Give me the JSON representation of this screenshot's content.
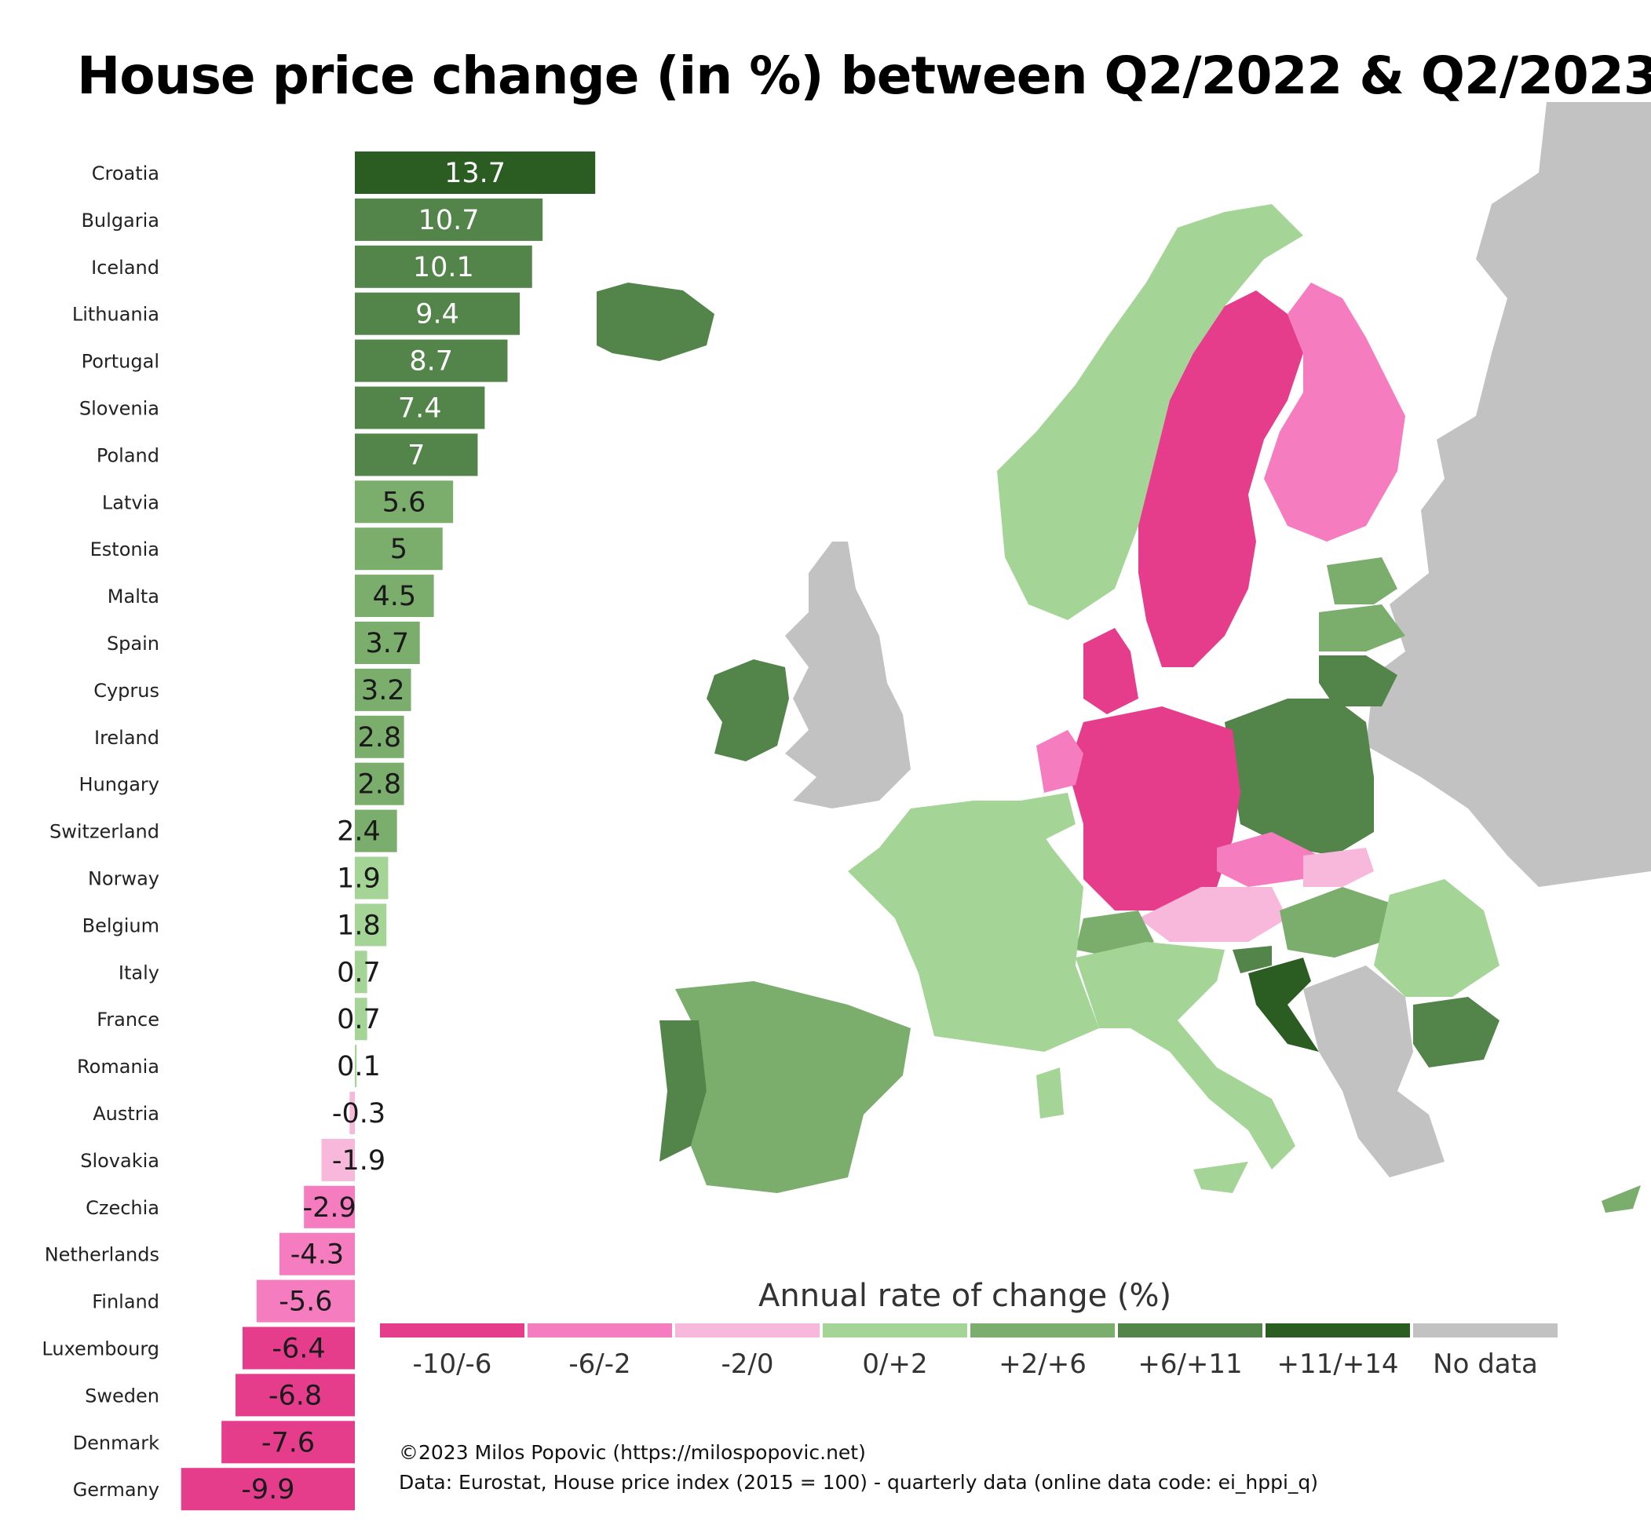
{
  "title": "House price change (in %) between Q2/2022 & Q2/2023",
  "chart_data": {
    "type": "bar",
    "orientation": "horizontal",
    "title": "House price change (in %) between Q2/2022 & Q2/2023",
    "categories": [
      "Croatia",
      "Bulgaria",
      "Iceland",
      "Lithuania",
      "Portugal",
      "Slovenia",
      "Poland",
      "Latvia",
      "Estonia",
      "Malta",
      "Spain",
      "Cyprus",
      "Ireland",
      "Hungary",
      "Switzerland",
      "Norway",
      "Belgium",
      "Italy",
      "France",
      "Romania",
      "Austria",
      "Slovakia",
      "Czechia",
      "Netherlands",
      "Finland",
      "Luxembourg",
      "Sweden",
      "Denmark",
      "Germany"
    ],
    "values": [
      13.7,
      10.7,
      10.1,
      9.4,
      8.7,
      7.4,
      7,
      5.6,
      5,
      4.5,
      3.7,
      3.2,
      2.8,
      2.8,
      2.4,
      1.9,
      1.8,
      0.7,
      0.7,
      0.1,
      -0.3,
      -1.9,
      -2.9,
      -4.3,
      -5.6,
      -6.4,
      -6.8,
      -7.6,
      -9.9
    ],
    "value_labels": [
      "13.7",
      "10.7",
      "10.1",
      "9.4",
      "8.7",
      "7.4",
      "7",
      "5.6",
      "5",
      "4.5",
      "3.7",
      "3.2",
      "2.8",
      "2.8",
      "2.4",
      "1.9",
      "1.8",
      "0.7",
      "0.7",
      "0.1",
      "-0.3",
      "-1.9",
      "-2.9",
      "-4.3",
      "-5.6",
      "-6.4",
      "-6.8",
      "-7.6",
      "-9.9"
    ],
    "grid": false
  },
  "legend": {
    "title": "Annual rate of change (%)",
    "items": [
      {
        "label": "-10/-6",
        "color": "#e53d8c"
      },
      {
        "label": "-6/-2",
        "color": "#f57cbf"
      },
      {
        "label": "-2/0",
        "color": "#f8b8dc"
      },
      {
        "label": "0/+2",
        "color": "#a4d596"
      },
      {
        "label": "+2/+6",
        "color": "#7bad6c"
      },
      {
        "label": "+6/+11",
        "color": "#53844a"
      },
      {
        "label": "+11/+14",
        "color": "#2b5d23"
      },
      {
        "label": "No data",
        "color": "#c2c2c2"
      }
    ]
  },
  "credits": {
    "line1": "©2023 Milos Popovic (https://milospopovic.net)",
    "line2": "Data: Eurostat, House price index (2015 = 100) - quarterly data (online data code: ei_hppi_q)"
  }
}
